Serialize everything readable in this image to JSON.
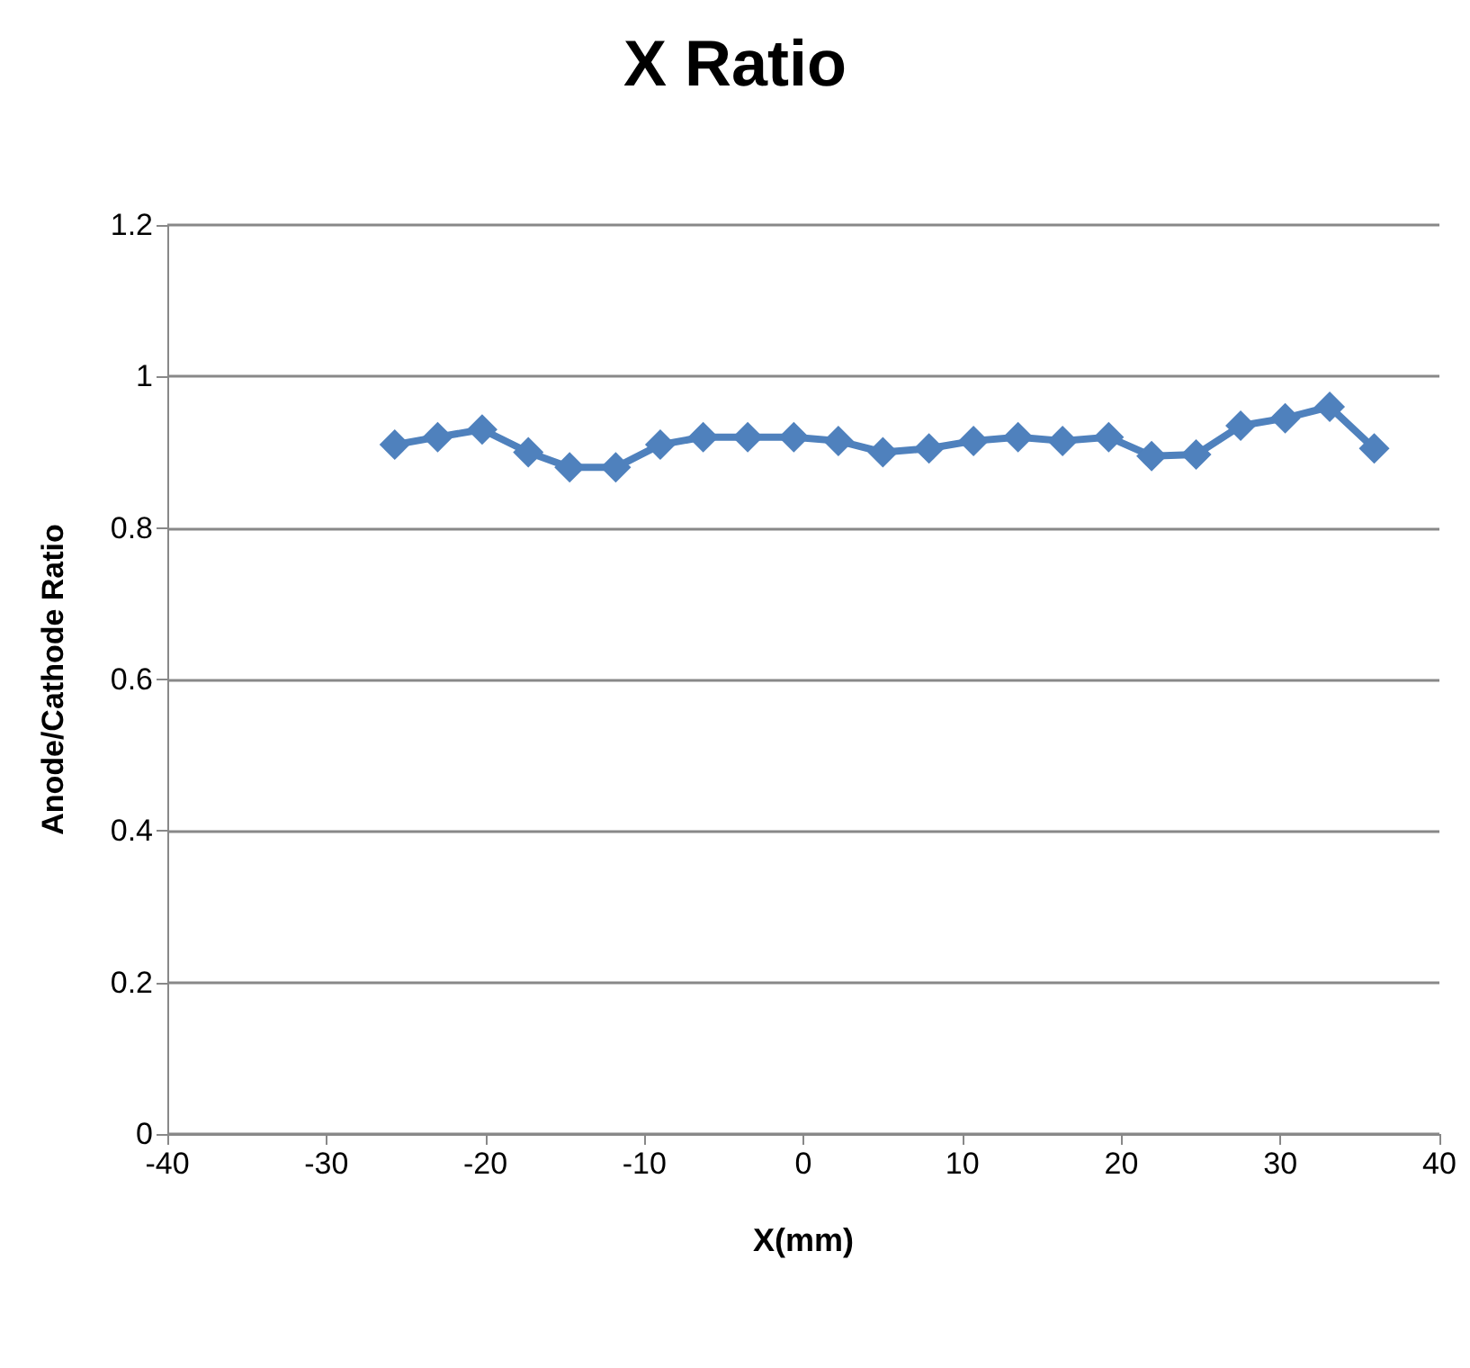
{
  "chart_data": {
    "type": "line",
    "title": "X Ratio",
    "xlabel": "X(mm)",
    "ylabel": "Anode/Cathode Ratio",
    "series": [
      {
        "color": "#4f81bd",
        "x": [
          -25.7,
          -23.0,
          -20.2,
          -17.3,
          -14.7,
          -11.8,
          -9.0,
          -6.3,
          -3.5,
          -0.6,
          2.2,
          5.0,
          7.9,
          10.7,
          13.5,
          16.3,
          19.2,
          21.9,
          24.7,
          27.5,
          30.3,
          33.1,
          35.9
        ],
        "values": [
          0.91,
          0.92,
          0.93,
          0.9,
          0.88,
          0.88,
          0.91,
          0.92,
          0.92,
          0.92,
          0.915,
          0.9,
          0.905,
          0.915,
          0.92,
          0.915,
          0.92,
          0.895,
          0.897,
          0.935,
          0.945,
          0.96,
          0.905
        ]
      }
    ],
    "xlim": [
      -40,
      40
    ],
    "xticks": [
      -40,
      -30,
      -20,
      -10,
      0,
      10,
      20,
      30,
      40
    ],
    "ylim": [
      0,
      1.2
    ],
    "yticks": [
      0,
      0.2,
      0.4,
      0.6,
      0.8,
      1,
      1.2
    ],
    "grid": "y",
    "marker": "diamond",
    "line_style": "solid"
  }
}
